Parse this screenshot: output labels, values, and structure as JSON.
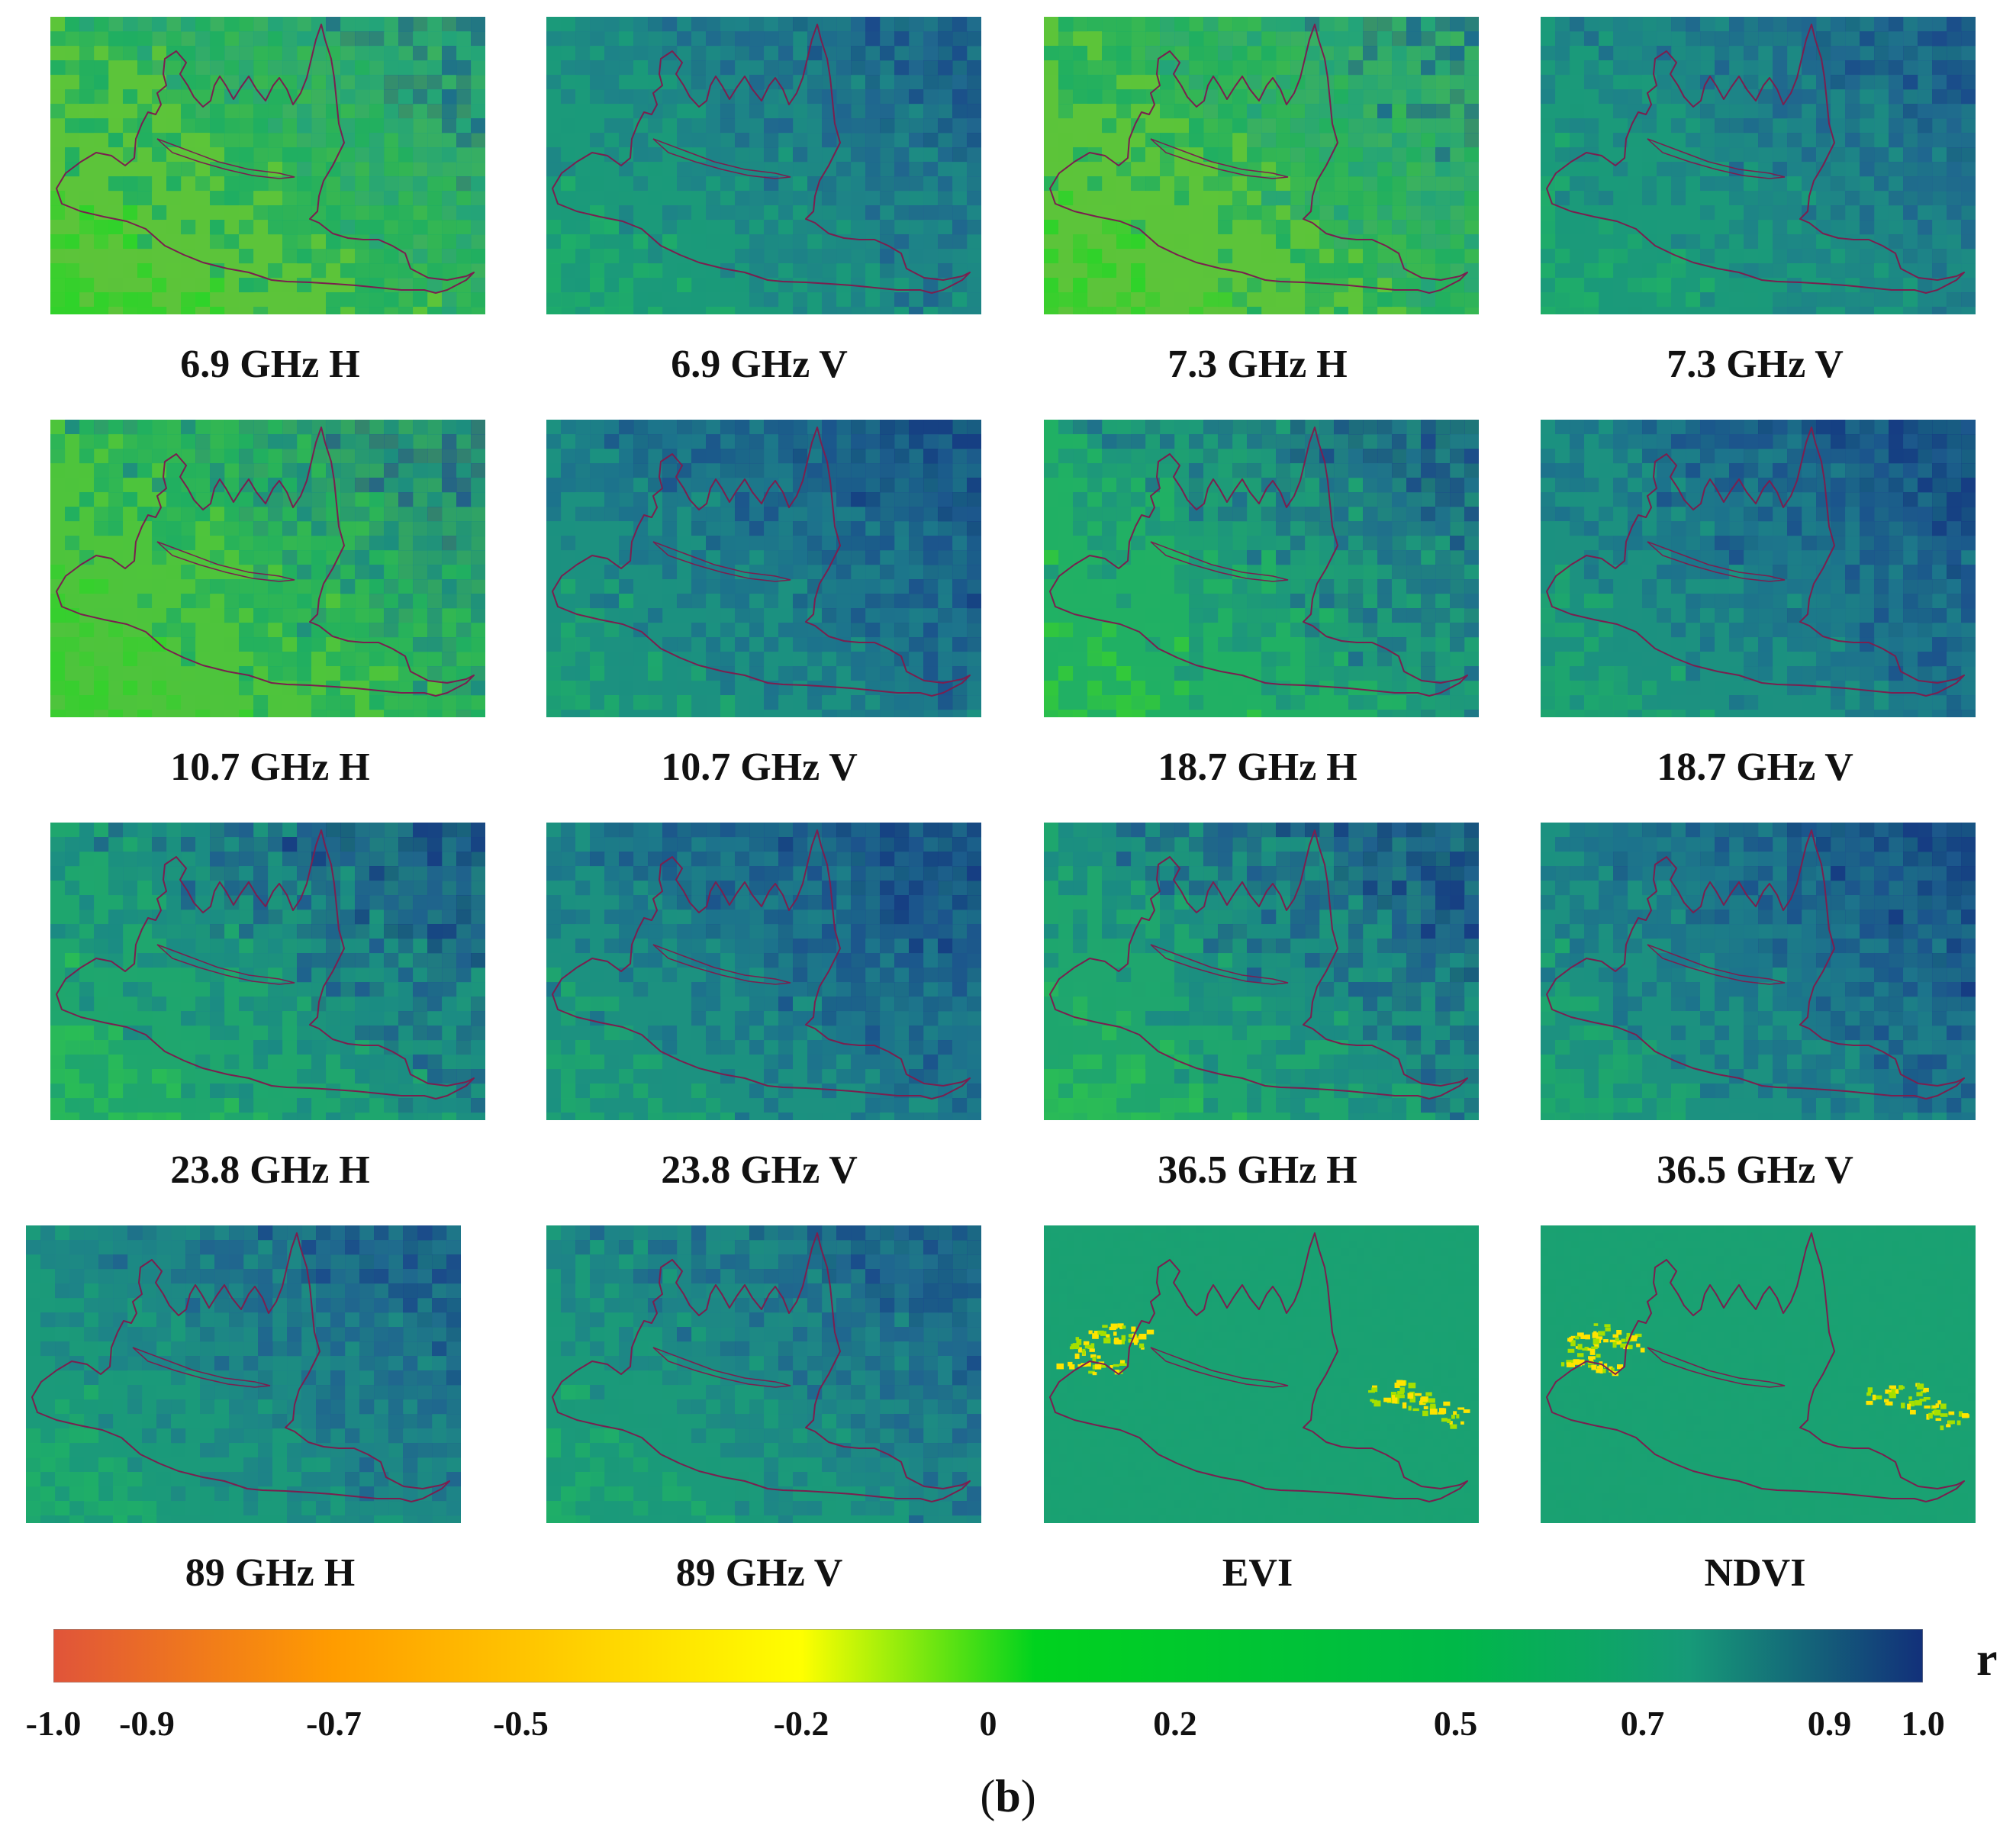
{
  "figure": {
    "panels": [
      {
        "id": "p1",
        "label": "6.9 GHz H",
        "tone": "h_low"
      },
      {
        "id": "p2",
        "label": "6.9 GHz V",
        "tone": "v_mid"
      },
      {
        "id": "p3",
        "label": "7.3 GHz H",
        "tone": "h_low"
      },
      {
        "id": "p4",
        "label": "7.3 GHz V",
        "tone": "v_mid"
      },
      {
        "id": "p5",
        "label": "10.7 GHz H",
        "tone": "h_low2"
      },
      {
        "id": "p6",
        "label": "10.7 GHz V",
        "tone": "v_high"
      },
      {
        "id": "p7",
        "label": "18.7 GHz H",
        "tone": "h_mid"
      },
      {
        "id": "p8",
        "label": "18.7 GHz V",
        "tone": "v_high"
      },
      {
        "id": "p9",
        "label": "23.8 GHz H",
        "tone": "h_high"
      },
      {
        "id": "p10",
        "label": "23.8 GHz V",
        "tone": "v_high"
      },
      {
        "id": "p11",
        "label": "36.5 GHz H",
        "tone": "h_high"
      },
      {
        "id": "p12",
        "label": "36.5 GHz V",
        "tone": "v_high"
      },
      {
        "id": "p13",
        "label": "89 GHz H",
        "tone": "v_mid"
      },
      {
        "id": "p14",
        "label": "89 GHz V",
        "tone": "v_mid"
      },
      {
        "id": "p15",
        "label": "EVI",
        "tone": "evi"
      },
      {
        "id": "p16",
        "label": "NDVI",
        "tone": "evi"
      }
    ],
    "colorbar": {
      "label": "r",
      "range": [
        -1.0,
        1.0
      ],
      "stops": [
        {
          "value": -1.0,
          "color": "#e0543a"
        },
        {
          "value": -0.7,
          "color": "#ff9c00"
        },
        {
          "value": -0.2,
          "color": "#ffff00"
        },
        {
          "value": 0.05,
          "color": "#00d21e"
        },
        {
          "value": 0.5,
          "color": "#00b848"
        },
        {
          "value": 0.75,
          "color": "#169a78"
        },
        {
          "value": 1.0,
          "color": "#12307a"
        }
      ],
      "ticks": [
        {
          "value": -1.0,
          "label": "-1.0"
        },
        {
          "value": -0.9,
          "label": "-0.9"
        },
        {
          "value": -0.7,
          "label": "-0.7"
        },
        {
          "value": -0.5,
          "label": "-0.5"
        },
        {
          "value": -0.2,
          "label": "-0.2"
        },
        {
          "value": 0.0,
          "label": "0"
        },
        {
          "value": 0.2,
          "label": "0.2"
        },
        {
          "value": 0.5,
          "label": "0.5"
        },
        {
          "value": 0.7,
          "label": "0.7"
        },
        {
          "value": 0.9,
          "label": "0.9"
        },
        {
          "value": 1.0,
          "label": "1.0"
        }
      ]
    },
    "subfigure_label": {
      "open": "(",
      "letter": "b",
      "close": ")"
    },
    "colors": {
      "boundary": "#7a1f4f",
      "h_low": [
        "#2fd22a",
        "#5cc43a",
        "#1fae62",
        "#22a37a",
        "#1c6f8c"
      ],
      "h_low2": [
        "#36cf2e",
        "#4ec43c",
        "#1fae62",
        "#1c8d80",
        "#215a8e"
      ],
      "h_mid": [
        "#33c93a",
        "#21b064",
        "#1d967c",
        "#1f6f8c",
        "#1c4a8a"
      ],
      "h_high": [
        "#2bbd55",
        "#1fa66e",
        "#1b8a84",
        "#1f5f8e",
        "#173f84"
      ],
      "v_mid": [
        "#1fae68",
        "#1b9a7a",
        "#1e8288",
        "#20658f",
        "#1b4b8b"
      ],
      "v_high": [
        "#1ea86c",
        "#1c9180",
        "#1d728c",
        "#1c548c",
        "#163d83"
      ],
      "evi": [
        "#1fae62",
        "#1aa172",
        "#1c927e",
        "#ffe400",
        "#a5e000"
      ]
    }
  }
}
